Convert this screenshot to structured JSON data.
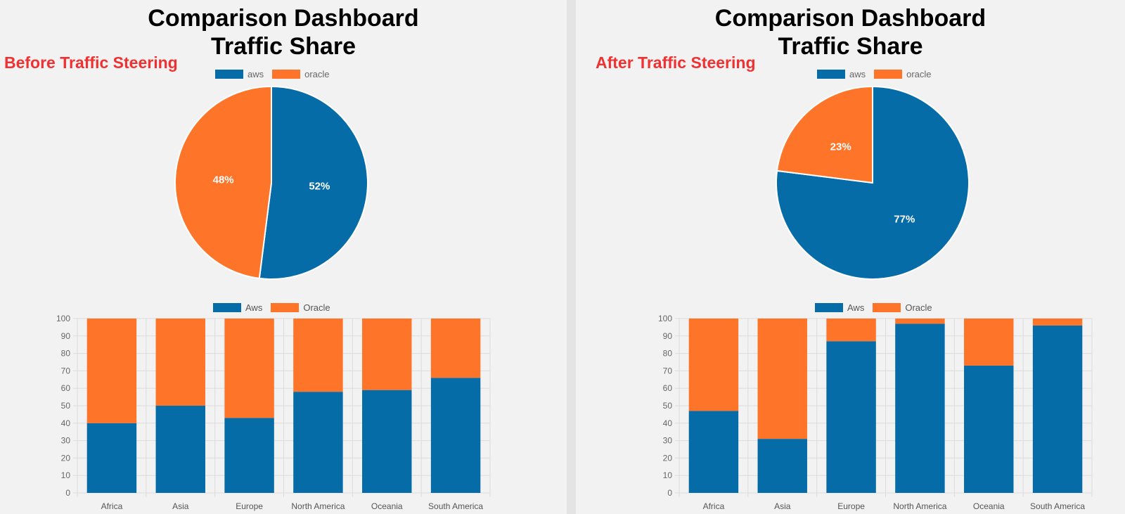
{
  "colors": {
    "aws": "#066ca8",
    "oracle": "#fe7429"
  },
  "chart_data": [
    {
      "panel": "before",
      "label": "Before Traffic Steering",
      "title_line1": "Comparison Dashboard",
      "title_line2": "Traffic Share",
      "pie": {
        "type": "pie",
        "legend": [
          "aws",
          "oracle"
        ],
        "values": [
          52,
          48
        ],
        "value_labels": [
          "52%",
          "48%"
        ]
      },
      "bar": {
        "type": "bar",
        "stacked": true,
        "legend": [
          "Aws",
          "Oracle"
        ],
        "categories": [
          "Africa",
          "Asia",
          "Europe",
          "North America",
          "Oceania",
          "South America"
        ],
        "series": [
          {
            "name": "Aws",
            "values": [
              40,
              50,
              43,
              58,
              59,
              66
            ]
          },
          {
            "name": "Oracle",
            "values": [
              60,
              50,
              57,
              42,
              41,
              34
            ]
          }
        ],
        "ylim": [
          0,
          100
        ],
        "yticks": [
          "0",
          "10",
          "20",
          "30",
          "40",
          "50",
          "60",
          "70",
          "80",
          "90",
          "100"
        ],
        "grid": true
      }
    },
    {
      "panel": "after",
      "label": "After Traffic Steering",
      "title_line1": "Comparison Dashboard",
      "title_line2": "Traffic Share",
      "pie": {
        "type": "pie",
        "legend": [
          "aws",
          "oracle"
        ],
        "values": [
          77,
          23
        ],
        "value_labels": [
          "77%",
          "23%"
        ]
      },
      "bar": {
        "type": "bar",
        "stacked": true,
        "legend": [
          "Aws",
          "Oracle"
        ],
        "categories": [
          "Africa",
          "Asia",
          "Europe",
          "North America",
          "Oceania",
          "South America"
        ],
        "series": [
          {
            "name": "Aws",
            "values": [
              47,
              31,
              87,
              97,
              73,
              96
            ]
          },
          {
            "name": "Oracle",
            "values": [
              53,
              69,
              13,
              3,
              27,
              4
            ]
          }
        ],
        "ylim": [
          0,
          100
        ],
        "yticks": [
          "0",
          "10",
          "20",
          "30",
          "40",
          "50",
          "60",
          "70",
          "80",
          "90",
          "100"
        ],
        "grid": true
      }
    }
  ]
}
